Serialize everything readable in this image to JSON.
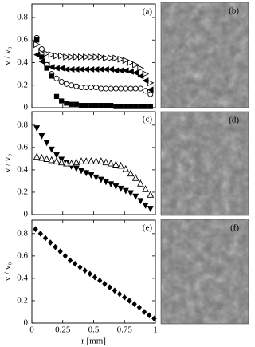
{
  "chart_data": [
    {
      "type": "scatter",
      "panel_label": "(a)",
      "ylabel": "v / v₀",
      "x": [
        0.04,
        0.08,
        0.12,
        0.16,
        0.2,
        0.24,
        0.28,
        0.32,
        0.36,
        0.4,
        0.44,
        0.48,
        0.52,
        0.56,
        0.6,
        0.64,
        0.68,
        0.72,
        0.76,
        0.8,
        0.84,
        0.88,
        0.92,
        0.96
      ],
      "series": [
        {
          "marker": "triangle-right-open",
          "color": "#000000",
          "values": [
            0.56,
            0.5,
            0.48,
            0.47,
            0.46,
            0.46,
            0.45,
            0.45,
            0.45,
            0.45,
            0.45,
            0.45,
            0.45,
            0.45,
            0.44,
            0.44,
            0.44,
            0.43,
            0.42,
            0.4,
            0.38,
            0.35,
            0.3,
            0.22
          ]
        },
        {
          "marker": "triangle-left-filled",
          "color": "#000000",
          "values": [
            0.47,
            0.41,
            0.38,
            0.36,
            0.35,
            0.35,
            0.34,
            0.34,
            0.34,
            0.34,
            0.34,
            0.34,
            0.34,
            0.34,
            0.34,
            0.34,
            0.33,
            0.33,
            0.33,
            0.32,
            0.31,
            0.28,
            0.24,
            0.16
          ]
        },
        {
          "marker": "circle-open",
          "color": "#000000",
          "values": [
            0.62,
            0.52,
            0.38,
            0.3,
            0.26,
            0.23,
            0.21,
            0.2,
            0.19,
            0.18,
            0.18,
            0.18,
            0.18,
            0.17,
            0.17,
            0.17,
            0.17,
            0.17,
            0.17,
            0.17,
            0.17,
            0.17,
            0.15,
            0.12
          ]
        },
        {
          "marker": "square-filled",
          "color": "#000000",
          "values": [
            0.6,
            0.45,
            0.35,
            0.28,
            0.1,
            0.06,
            0.04,
            0.03,
            0.03,
            0.02,
            0.02,
            0.02,
            0.02,
            0.02,
            0.02,
            0.02,
            0.01,
            0.01,
            0.01,
            0.01,
            0.01,
            0.01,
            0.01,
            0.01
          ]
        }
      ],
      "xlim": [
        0,
        1
      ],
      "xticks": [
        0,
        0.25,
        0.5,
        0.75,
        1
      ],
      "xticklabels": false,
      "ylim": [
        0,
        0.92
      ],
      "yticks": [
        0,
        0.2,
        0.4,
        0.6,
        0.8
      ]
    },
    {
      "type": "scatter",
      "panel_label": "(c)",
      "ylabel": "v / v₀",
      "x": [
        0.04,
        0.08,
        0.12,
        0.16,
        0.2,
        0.24,
        0.28,
        0.32,
        0.36,
        0.4,
        0.44,
        0.48,
        0.52,
        0.56,
        0.6,
        0.64,
        0.68,
        0.72,
        0.76,
        0.8,
        0.84,
        0.88,
        0.92,
        0.96
      ],
      "series": [
        {
          "marker": "triangle-down-filled",
          "color": "#000000",
          "values": [
            0.77,
            0.7,
            0.64,
            0.58,
            0.53,
            0.49,
            0.46,
            0.43,
            0.41,
            0.39,
            0.37,
            0.35,
            0.33,
            0.31,
            0.29,
            0.27,
            0.25,
            0.23,
            0.21,
            0.19,
            0.16,
            0.12,
            0.08,
            0.05
          ]
        },
        {
          "marker": "triangle-up-open",
          "color": "#000000",
          "values": [
            0.52,
            0.51,
            0.5,
            0.49,
            0.48,
            0.47,
            0.46,
            0.46,
            0.47,
            0.48,
            0.48,
            0.48,
            0.48,
            0.48,
            0.47,
            0.46,
            0.45,
            0.44,
            0.41,
            0.37,
            0.33,
            0.28,
            0.23,
            0.18
          ]
        }
      ],
      "xlim": [
        0,
        1
      ],
      "xticks": [
        0,
        0.25,
        0.5,
        0.75,
        1
      ],
      "xticklabels": false,
      "ylim": [
        0,
        0.92
      ],
      "yticks": [
        0,
        0.2,
        0.4,
        0.6,
        0.8
      ]
    },
    {
      "type": "scatter",
      "panel_label": "(e)",
      "ylabel": "v / v₀",
      "xlabel": "r [mm]",
      "x": [
        0.03,
        0.07,
        0.11,
        0.15,
        0.19,
        0.23,
        0.27,
        0.31,
        0.35,
        0.39,
        0.43,
        0.47,
        0.51,
        0.55,
        0.59,
        0.63,
        0.67,
        0.71,
        0.75,
        0.79,
        0.83,
        0.87,
        0.91,
        0.95,
        0.99
      ],
      "series": [
        {
          "marker": "diamond-filled",
          "color": "#000000",
          "values": [
            0.84,
            0.8,
            0.76,
            0.72,
            0.68,
            0.64,
            0.6,
            0.56,
            0.53,
            0.5,
            0.47,
            0.44,
            0.41,
            0.38,
            0.35,
            0.32,
            0.29,
            0.26,
            0.23,
            0.2,
            0.17,
            0.14,
            0.1,
            0.07,
            0.04
          ]
        }
      ],
      "xlim": [
        0,
        1
      ],
      "xticks": [
        0,
        0.25,
        0.5,
        0.75,
        1
      ],
      "xticklabels": true,
      "ylim": [
        0,
        0.92
      ],
      "yticks": [
        0,
        0.2,
        0.4,
        0.6,
        0.8
      ]
    }
  ],
  "images": [
    {
      "label": "(b)"
    },
    {
      "label": "(d)"
    },
    {
      "label": "(f)"
    }
  ]
}
